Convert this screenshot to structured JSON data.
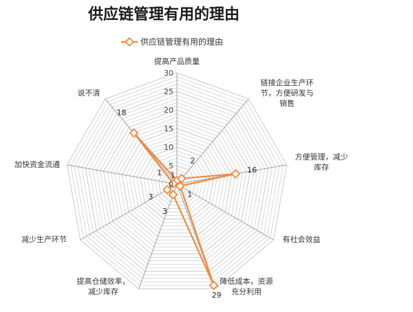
{
  "chart_data": {
    "type": "radar",
    "title": "供应链管理有用的理由",
    "legend": {
      "position": "top-left"
    },
    "grid": true,
    "rlim": [
      0,
      30
    ],
    "ticks": [
      "0",
      "5",
      "10",
      "15",
      "20",
      "25",
      "30"
    ],
    "colors": {
      "series": "#F08A3C",
      "grid": "#c8c8c8",
      "spoke": "#a0a0a0"
    },
    "categories": [
      {
        "lines": [
          "提高产品质量"
        ]
      },
      {
        "lines": [
          "链接企业生产环",
          "节，方便研发与",
          "销售"
        ]
      },
      {
        "lines": [
          "方便管理，减少",
          "库存"
        ]
      },
      {
        "lines": [
          "有社会效益"
        ]
      },
      {
        "lines": [
          "降低成本，资源",
          "充分利用"
        ]
      },
      {
        "lines": [
          "提高仓储效率，",
          "减少库存"
        ]
      },
      {
        "lines": [
          "减少生产环节"
        ]
      },
      {
        "lines": [
          "加快资金流通"
        ]
      },
      {
        "lines": [
          "说不清"
        ]
      }
    ],
    "series": [
      {
        "name": "供应链管理有用的理由",
        "values": [
          1,
          2,
          16,
          1,
          29,
          3,
          3,
          1,
          18
        ],
        "labels": [
          "1",
          "2",
          "16",
          "1",
          "29",
          "3",
          "3",
          "1",
          "18"
        ]
      }
    ]
  }
}
